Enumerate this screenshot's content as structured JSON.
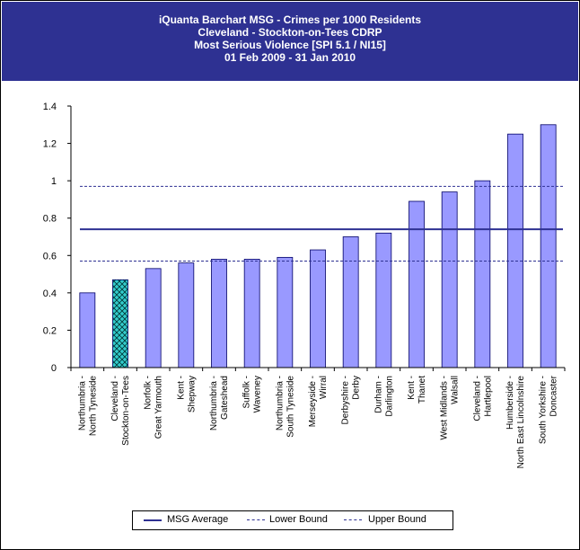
{
  "title_lines": [
    "iQuanta Barchart MSG - Crimes per 1000 Residents",
    "Cleveland - Stockton-on-Tees CDRP",
    "Most Serious Violence [SPI 5.1 / NI15]",
    "01 Feb 2009 - 31 Jan 2010"
  ],
  "colors": {
    "header_bg": "#2e3192",
    "bar_fill": "#9999ff",
    "bar_stroke": "#000066",
    "highlight_fill": "#33cccc",
    "line": "#2e3192"
  },
  "chart_data": {
    "type": "bar",
    "categories": [
      [
        "Northumbria -",
        "North Tyneside"
      ],
      [
        "Cleveland -",
        "Stockton-on-Tees"
      ],
      [
        "Norfolk -",
        "Great Yarmouth"
      ],
      [
        "Kent -",
        "Shepway"
      ],
      [
        "Northumbria -",
        "Gateshead"
      ],
      [
        "Suffolk -",
        "Waveney"
      ],
      [
        "Northumbria -",
        "South Tyneside"
      ],
      [
        "Merseyside -",
        "Wirral"
      ],
      [
        "Derbyshire -",
        "Derby"
      ],
      [
        "Durham -",
        "Darlington"
      ],
      [
        "Kent -",
        "Thanet"
      ],
      [
        "West Midlands -",
        "Walsall"
      ],
      [
        "Cleveland -",
        "Hartlepool"
      ],
      [
        "Humberside -",
        "North East Lincolnshire"
      ],
      [
        "South Yorkshire -",
        "Doncaster"
      ]
    ],
    "values": [
      0.4,
      0.47,
      0.53,
      0.56,
      0.58,
      0.58,
      0.59,
      0.63,
      0.7,
      0.72,
      0.89,
      0.94,
      1.0,
      1.25,
      1.3
    ],
    "highlight_index": 1,
    "ylim": [
      0,
      1.4
    ],
    "yticks": [
      "0",
      "0.2",
      "0.4",
      "0.6",
      "0.8",
      "1",
      "1.2",
      "1.4"
    ],
    "reference_lines": [
      {
        "name": "MSG Average",
        "value": 0.74,
        "style": "solid"
      },
      {
        "name": "Lower Bound",
        "value": 0.57,
        "style": "dashed"
      },
      {
        "name": "Upper Bound",
        "value": 0.97,
        "style": "dashed"
      }
    ],
    "legend_position": "bottom"
  }
}
